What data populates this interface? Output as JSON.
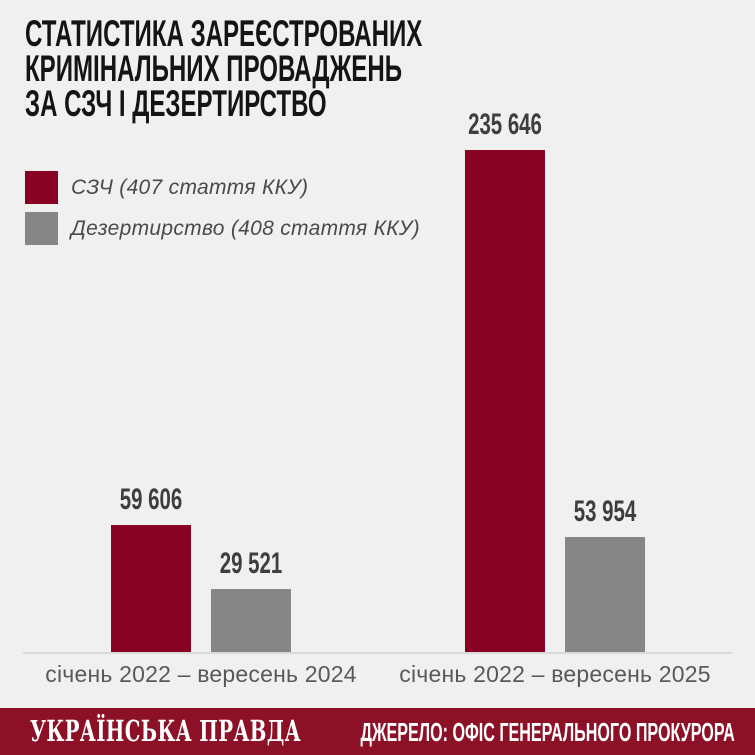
{
  "page": {
    "background": "#F1F0F0"
  },
  "title": {
    "lines": [
      "СТАТИСТИКА ЗАРЕЄСТРОВАНИХ",
      "КРИМІНАЛЬНИХ ПРОВАДЖЕНЬ",
      "ЗА СЗЧ І ДЕЗЕРТИРСТВО"
    ]
  },
  "legend": {
    "items": [
      {
        "label": "СЗЧ (407 стаття ККУ)",
        "color": "#880323"
      },
      {
        "label": "Дезертирство (408 стаття ККУ)",
        "color": "#868686"
      }
    ]
  },
  "chart_data": {
    "type": "bar",
    "title": "СТАТИСТИКА ЗАРЕЄСТРОВАНИХ КРИМІНАЛЬНИХ ПРОВАДЖЕНЬ ЗА СЗЧ І ДЕЗЕРТИРСТВО",
    "categories": [
      "січень 2022 – вересень 2024",
      "січень 2022 – вересень 2025"
    ],
    "series": [
      {
        "name": "СЗЧ (407 стаття ККУ)",
        "color": "#880323",
        "values": [
          59606,
          235646
        ],
        "labels": [
          "59 606",
          "235 646"
        ]
      },
      {
        "name": "Дезертирство (408 стаття ККУ)",
        "color": "#868686",
        "values": [
          29521,
          53954
        ],
        "labels": [
          "29 521",
          "53 954"
        ]
      }
    ],
    "xlabel": "",
    "ylabel": "",
    "ylim": [
      0,
      240000
    ],
    "grid": false,
    "legend_position": "top-left",
    "value_labels_shown": true,
    "baseline_color": "#D9D9D9"
  },
  "footer": {
    "brand": "УКРАЇНСЬКА ПРАВДА",
    "source": "ДЖЕРЕЛО: ОФІС ГЕНЕРАЛЬНОГО ПРОКУРОРА",
    "background": "#8C1126"
  }
}
